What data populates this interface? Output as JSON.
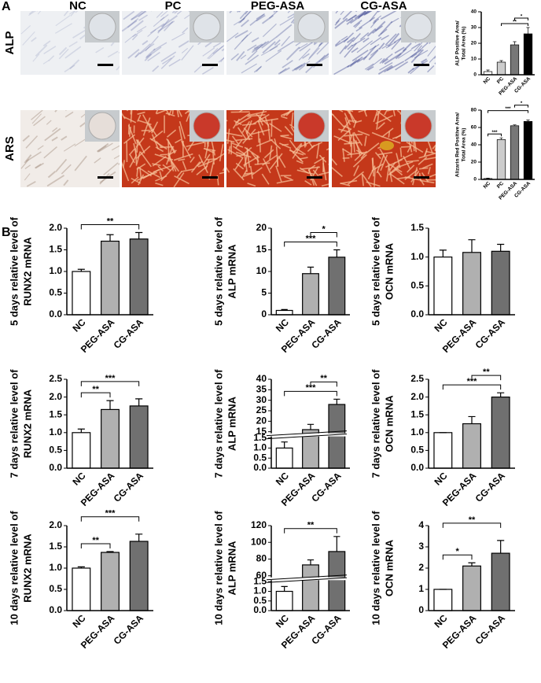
{
  "figure": {
    "panel_labels": [
      "A",
      "B"
    ],
    "columns": [
      "NC",
      "PC",
      "PEG-ASA",
      "CG-ASA"
    ],
    "stains": [
      "ALP",
      "ARS"
    ]
  },
  "chart_data": [
    {
      "type": "bar",
      "ylabel": [
        "ALP Positive Area/",
        "Total Area (%)"
      ],
      "categories": [
        "NC",
        "PC",
        "PEG-ASA",
        "CG-ASA"
      ],
      "values": [
        2,
        8,
        19,
        26
      ],
      "errors": [
        1,
        1,
        2,
        4
      ],
      "colors": [
        "#ffffff",
        "#cccccc",
        "#777777",
        "#000000"
      ],
      "ylim": [
        0,
        40
      ],
      "yticks": [
        0,
        10,
        20,
        30,
        40
      ],
      "annotations": [
        {
          "label": "**",
          "pair": [
            "PC",
            "CG-ASA"
          ]
        },
        {
          "label": "*",
          "pair": [
            "PEG-ASA",
            "CG-ASA"
          ]
        }
      ]
    },
    {
      "type": "bar",
      "ylabel": [
        "Alizarin Red Positive Area/",
        "Total Area (%)"
      ],
      "categories": [
        "NC",
        "PC",
        "PEG-ASA",
        "CG-ASA"
      ],
      "values": [
        1,
        46,
        62,
        67
      ],
      "errors": [
        0.5,
        2,
        1,
        1.5
      ],
      "colors": [
        "#ffffff",
        "#cccccc",
        "#777777",
        "#000000"
      ],
      "ylim": [
        0,
        80
      ],
      "yticks": [
        0,
        20,
        40,
        60,
        80
      ],
      "annotations": [
        {
          "label": "***",
          "pair": [
            "NC",
            "PC"
          ]
        },
        {
          "label": "***",
          "pair": [
            "NC",
            "CG-ASA"
          ]
        },
        {
          "label": "*",
          "pair": [
            "PEG-ASA",
            "CG-ASA"
          ]
        }
      ]
    },
    {
      "type": "bar",
      "ylabel": [
        "5 days relative level of",
        "RUNX2 mRNA"
      ],
      "categories": [
        "NC",
        "PEG-ASA",
        "CG-ASA"
      ],
      "values": [
        1.0,
        1.7,
        1.75
      ],
      "errors": [
        0.05,
        0.15,
        0.15
      ],
      "colors": [
        "#ffffff",
        "#b0b0b0",
        "#707070"
      ],
      "ylim": [
        0,
        2
      ],
      "yticks": [
        {
          "value": 0,
          "label": "0.0"
        },
        0.5,
        {
          "value": 1,
          "label": "1.0"
        },
        1.5,
        {
          "value": 2,
          "label": "2.0"
        }
      ],
      "annotations": [
        {
          "label": "**",
          "pair": [
            "NC",
            "CG-ASA"
          ]
        }
      ]
    },
    {
      "type": "bar",
      "ylabel": [
        "5 days relative level of",
        "ALP mRNA"
      ],
      "categories": [
        "NC",
        "PEG-ASA",
        "CG-ASA"
      ],
      "values": [
        1.0,
        9.5,
        13.3
      ],
      "errors": [
        0.2,
        1.5,
        1.7
      ],
      "colors": [
        "#ffffff",
        "#b0b0b0",
        "#707070"
      ],
      "ylim": [
        0,
        20
      ],
      "yticks": [
        0,
        5,
        10,
        15,
        20
      ],
      "annotations": [
        {
          "label": "***",
          "pair": [
            "NC",
            "CG-ASA"
          ]
        },
        {
          "label": "*",
          "pair": [
            "PEG-ASA",
            "CG-ASA"
          ]
        }
      ]
    },
    {
      "type": "bar",
      "ylabel": [
        "5 days relative level of",
        "OCN mRNA"
      ],
      "categories": [
        "NC",
        "PEG-ASA",
        "CG-ASA"
      ],
      "values": [
        1.0,
        1.08,
        1.1
      ],
      "errors": [
        0.12,
        0.22,
        0.12
      ],
      "colors": [
        "#ffffff",
        "#b0b0b0",
        "#707070"
      ],
      "ylim": [
        0,
        1.5
      ],
      "yticks": [
        {
          "value": 0,
          "label": "0.0"
        },
        0.5,
        {
          "value": 1,
          "label": "1.0"
        },
        1.5
      ],
      "annotations": []
    },
    {
      "type": "bar",
      "ylabel": [
        "7 days relative level of",
        "RUNX2 mRNA"
      ],
      "categories": [
        "NC",
        "PEG-ASA",
        "CG-ASA"
      ],
      "values": [
        1.0,
        1.65,
        1.75
      ],
      "errors": [
        0.1,
        0.25,
        0.2
      ],
      "colors": [
        "#ffffff",
        "#b0b0b0",
        "#707070"
      ],
      "ylim": [
        0,
        2.5
      ],
      "yticks": [
        {
          "value": 0,
          "label": "0.0"
        },
        0.5,
        {
          "value": 1,
          "label": "1.0"
        },
        1.5,
        {
          "value": 2,
          "label": "2.0"
        },
        2.5
      ],
      "annotations": [
        {
          "label": "**",
          "pair": [
            "NC",
            "PEG-ASA"
          ]
        },
        {
          "label": "***",
          "pair": [
            "NC",
            "CG-ASA"
          ]
        }
      ]
    },
    {
      "type": "bar",
      "ylabel": [
        "7 days relative level of",
        "ALP mRNA"
      ],
      "categories": [
        "NC",
        "PEG-ASA",
        "CG-ASA"
      ],
      "values": [
        1.0,
        16,
        28
      ],
      "errors": [
        0.3,
        2.5,
        2.5
      ],
      "colors": [
        "#ffffff",
        "#b0b0b0",
        "#707070"
      ],
      "ylim": [
        0,
        40
      ],
      "ybreak": [
        1.5,
        15
      ],
      "yticks": [
        {
          "value": 0,
          "label": "0.0"
        },
        0.5,
        {
          "value": 1,
          "label": "1.0"
        },
        1.5,
        15,
        20,
        25,
        30,
        35,
        40
      ],
      "annotations": [
        {
          "label": "***",
          "pair": [
            "NC",
            "CG-ASA"
          ]
        },
        {
          "label": "**",
          "pair": [
            "PEG-ASA",
            "CG-ASA"
          ]
        }
      ]
    },
    {
      "type": "bar",
      "ylabel": [
        "7 days relative level of",
        "OCN mRNA"
      ],
      "categories": [
        "NC",
        "PEG-ASA",
        "CG-ASA"
      ],
      "values": [
        1.0,
        1.25,
        2.0
      ],
      "errors": [
        0,
        0.2,
        0.12
      ],
      "colors": [
        "#ffffff",
        "#b0b0b0",
        "#707070"
      ],
      "ylim": [
        0,
        2.5
      ],
      "yticks": [
        {
          "value": 0,
          "label": "0.0"
        },
        0.5,
        {
          "value": 1,
          "label": "1.0"
        },
        1.5,
        {
          "value": 2,
          "label": "2.0"
        },
        2.5
      ],
      "annotations": [
        {
          "label": "***",
          "pair": [
            "NC",
            "CG-ASA"
          ]
        },
        {
          "label": "**",
          "pair": [
            "PEG-ASA",
            "CG-ASA"
          ]
        }
      ]
    },
    {
      "type": "bar",
      "ylabel": [
        "10 days relative level of",
        "RUNX2 mRNA"
      ],
      "categories": [
        "NC",
        "PEG-ASA",
        "CG-ASA"
      ],
      "values": [
        1.0,
        1.37,
        1.63
      ],
      "errors": [
        0.03,
        0.02,
        0.17
      ],
      "colors": [
        "#ffffff",
        "#b0b0b0",
        "#707070"
      ],
      "ylim": [
        0,
        2
      ],
      "yticks": [
        {
          "value": 0,
          "label": "0.0"
        },
        0.5,
        {
          "value": 1,
          "label": "1.0"
        },
        1.5,
        {
          "value": 2,
          "label": "2.0"
        }
      ],
      "annotations": [
        {
          "label": "**",
          "pair": [
            "NC",
            "PEG-ASA"
          ]
        },
        {
          "label": "***",
          "pair": [
            "NC",
            "CG-ASA"
          ]
        }
      ]
    },
    {
      "type": "bar",
      "ylabel": [
        "10 days relative level of",
        "ALP mRNA"
      ],
      "categories": [
        "NC",
        "PEG-ASA",
        "CG-ASA"
      ],
      "values": [
        1.0,
        73,
        89
      ],
      "errors": [
        0.25,
        6,
        18
      ],
      "colors": [
        "#ffffff",
        "#b0b0b0",
        "#707070"
      ],
      "ylim": [
        0,
        120
      ],
      "ybreak": [
        1.5,
        60
      ],
      "yticks": [
        {
          "value": 0,
          "label": "0.0"
        },
        0.5,
        {
          "value": 1,
          "label": "1.0"
        },
        1.5,
        60,
        80,
        100,
        120
      ],
      "annotations": [
        {
          "label": "**",
          "pair": [
            "NC",
            "CG-ASA"
          ]
        }
      ]
    },
    {
      "type": "bar",
      "ylabel": [
        "10 days relative level of",
        "OCN mRNA"
      ],
      "categories": [
        "NC",
        "PEG-ASA",
        "CG-ASA"
      ],
      "values": [
        1.0,
        2.1,
        2.7
      ],
      "errors": [
        0,
        0.15,
        0.6
      ],
      "colors": [
        "#ffffff",
        "#b0b0b0",
        "#707070"
      ],
      "ylim": [
        0,
        4
      ],
      "yticks": [
        0,
        1,
        2,
        3,
        4
      ],
      "annotations": [
        {
          "label": "*",
          "pair": [
            "NC",
            "PEG-ASA"
          ]
        },
        {
          "label": "**",
          "pair": [
            "NC",
            "CG-ASA"
          ]
        }
      ]
    }
  ]
}
